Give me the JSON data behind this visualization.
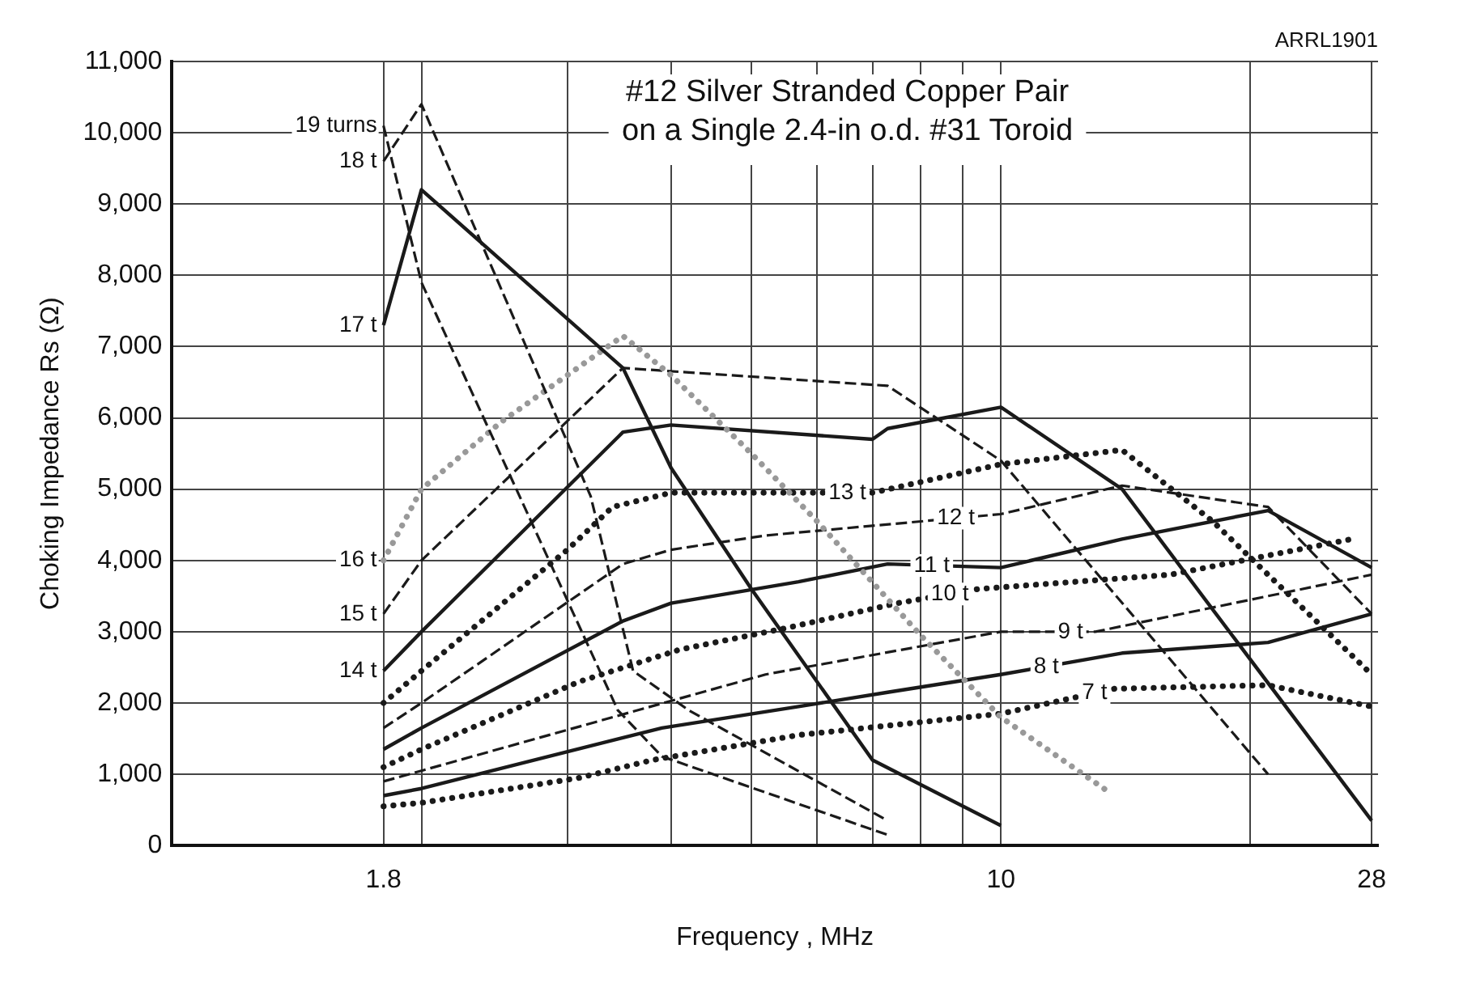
{
  "chart_data": {
    "type": "line",
    "title": "#12 Silver Stranded Copper Pair on a Single 2.4-in o.d. #31 Toroid",
    "xlabel": "Frequency , MHz",
    "ylabel": "Choking Impedance Rs (Ω)",
    "annotations": [
      "ARRL1901"
    ],
    "log": "x",
    "xlim": [
      1,
      28.5
    ],
    "xticks": [
      1.8,
      {
        "value": 2,
        "label": null
      },
      {
        "value": 3,
        "label": null
      },
      {
        "value": 4,
        "label": null
      },
      {
        "value": 5,
        "label": null
      },
      {
        "value": 6,
        "label": null
      },
      {
        "value": 7,
        "label": null
      },
      {
        "value": 8,
        "label": null
      },
      {
        "value": 9,
        "label": null
      },
      10,
      {
        "value": 20,
        "label": null
      },
      28
    ],
    "ylim": [
      0,
      11000
    ],
    "yticks": [
      0,
      {
        "value": 1000,
        "label": "1,000"
      },
      {
        "value": 2000,
        "label": "2,000"
      },
      {
        "value": 3000,
        "label": "3,000"
      },
      {
        "value": 4000,
        "label": "4,000"
      },
      {
        "value": 5000,
        "label": "5,000"
      },
      {
        "value": 6000,
        "label": "6,000"
      },
      {
        "value": 7000,
        "label": "7,000"
      },
      {
        "value": 8000,
        "label": "8,000"
      },
      {
        "value": 9000,
        "label": "9,000"
      },
      {
        "value": 10000,
        "label": "10,000"
      },
      {
        "value": 11000,
        "label": "11,000"
      }
    ],
    "grid": true,
    "legend": false,
    "marker": "none",
    "series": [
      {
        "name": "19 turns",
        "color": "#1a1a1a",
        "line_style": "dashed",
        "x": [
          1.8,
          2,
          3.45,
          3.9,
          7.3
        ],
        "values": [
          10100,
          7900,
          1900,
          1250,
          150
        ]
      },
      {
        "name": "18 t",
        "color": "#1a1a1a",
        "line_style": "dashed",
        "x": [
          1.8,
          2,
          3.2,
          3.6,
          4.2,
          7.3
        ],
        "values": [
          9600,
          10400,
          4900,
          2450,
          1900,
          350
        ]
      },
      {
        "name": "17 t",
        "color": "#1a1a1a",
        "line_style": "solid",
        "x": [
          1.8,
          2,
          3.5,
          4,
          5,
          7,
          10
        ],
        "values": [
          7300,
          9200,
          6700,
          5300,
          3600,
          1200,
          280
        ]
      },
      {
        "name": "16 t",
        "color": "#999999",
        "line_style": "dotted",
        "x": [
          1.8,
          2,
          2.5,
          3.5,
          4,
          5,
          6,
          8,
          10,
          13.5
        ],
        "values": [
          4000,
          5000,
          5950,
          7150,
          6600,
          5500,
          4550,
          2950,
          1800,
          750
        ]
      },
      {
        "name": "15 t",
        "color": "#1a1a1a",
        "line_style": "dashed",
        "x": [
          1.8,
          2,
          3.5,
          7.3,
          10,
          21
        ],
        "values": [
          3250,
          4000,
          6700,
          6450,
          5400,
          1000
        ]
      },
      {
        "name": "14 t",
        "color": "#1a1a1a",
        "line_style": "solid",
        "x": [
          1.8,
          2,
          3.5,
          4,
          7,
          7.3,
          10,
          14,
          28
        ],
        "values": [
          2450,
          3000,
          5800,
          5900,
          5700,
          5850,
          6150,
          5000,
          350
        ]
      },
      {
        "name": "13 t",
        "color": "#1a1a1a",
        "line_style": "dotted",
        "x": [
          1.8,
          2,
          3,
          3.4,
          4,
          7,
          10,
          14,
          18,
          28
        ],
        "values": [
          2000,
          2450,
          4150,
          4750,
          4950,
          4950,
          5350,
          5550,
          4550,
          2400
        ]
      },
      {
        "name": "12 t",
        "color": "#1a1a1a",
        "line_style": "dashed",
        "x": [
          1.8,
          2,
          3.5,
          4,
          5.2,
          10,
          14,
          21,
          28
        ],
        "values": [
          1650,
          2000,
          3950,
          4150,
          4350,
          4650,
          5050,
          4750,
          3250
        ]
      },
      {
        "name": "11 t",
        "color": "#1a1a1a",
        "line_style": "solid",
        "x": [
          1.8,
          2,
          3.5,
          4,
          5.7,
          7.3,
          10,
          14,
          21,
          28
        ],
        "values": [
          1350,
          1650,
          3150,
          3400,
          3700,
          3950,
          3900,
          4300,
          4700,
          3900
        ]
      },
      {
        "name": "10 t",
        "color": "#1a1a1a",
        "line_style": "dotted",
        "x": [
          1.8,
          2,
          3.1,
          4.1,
          5.5,
          7.5,
          9.4,
          16,
          26.5
        ],
        "values": [
          1100,
          1350,
          2300,
          2750,
          3050,
          3400,
          3600,
          3800,
          4300
        ]
      },
      {
        "name": "9 t",
        "color": "#1a1a1a",
        "line_style": "dashed",
        "x": [
          1.8,
          2,
          5.2,
          10,
          13,
          28
        ],
        "values": [
          900,
          1050,
          2400,
          3000,
          3000,
          3800
        ]
      },
      {
        "name": "8 t",
        "color": "#1a1a1a",
        "line_style": "solid",
        "x": [
          1.8,
          2,
          3.9,
          5.7,
          7.3,
          10,
          14,
          21,
          28
        ],
        "values": [
          700,
          800,
          1650,
          1950,
          2150,
          2400,
          2700,
          2850,
          3250
        ]
      },
      {
        "name": "7 t",
        "color": "#1a1a1a",
        "line_style": "dotted",
        "x": [
          1.8,
          2,
          3.1,
          3.8,
          5.7,
          10,
          13.7,
          21,
          28
        ],
        "values": [
          550,
          600,
          950,
          1200,
          1550,
          1850,
          2200,
          2250,
          1950
        ]
      }
    ]
  }
}
